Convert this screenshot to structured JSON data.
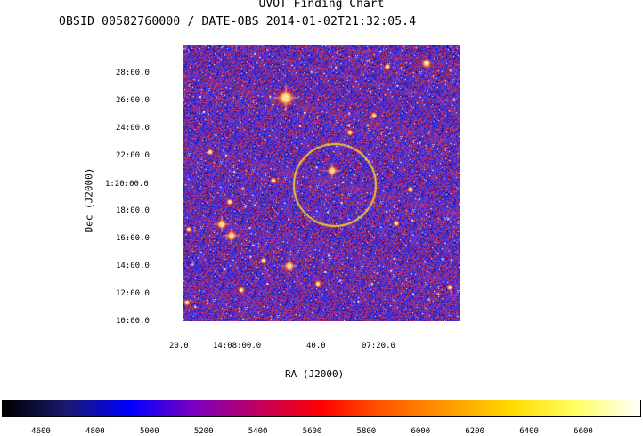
{
  "title": "UVOT Finding Chart",
  "subtitle": "OBSID 00582760000 / DATE-OBS 2014-01-02T21:32:05.4",
  "axes": {
    "y_label": "Dec (J2000)",
    "x_label": "RA (J2000)",
    "y_ticks": [
      "28:00.0",
      "26:00.0",
      "24:00.0",
      "22:00.0",
      "1:20:00.0",
      "18:00.0",
      "16:00.0",
      "14:00.0",
      "12:00.0",
      "10:00.0"
    ],
    "x_ticks": [
      "20.0",
      "14:08:00.0",
      "40.0",
      "07:20.0"
    ]
  },
  "colorbar": {
    "labels": [
      "4600",
      "4800",
      "5000",
      "5200",
      "5400",
      "5600",
      "5800",
      "6000",
      "6200",
      "6400",
      "6600"
    ],
    "colors": [
      "#000000",
      "#1a1a6e",
      "#0000ff",
      "#7a00c0",
      "#c00060",
      "#ff0000",
      "#ff5a00",
      "#ff9a00",
      "#ffdc00",
      "#ffff66",
      "#ffffff"
    ]
  },
  "image": {
    "background_colors": [
      "#2a24c8",
      "#b8324a"
    ],
    "circle_color": "#f2c233"
  }
}
